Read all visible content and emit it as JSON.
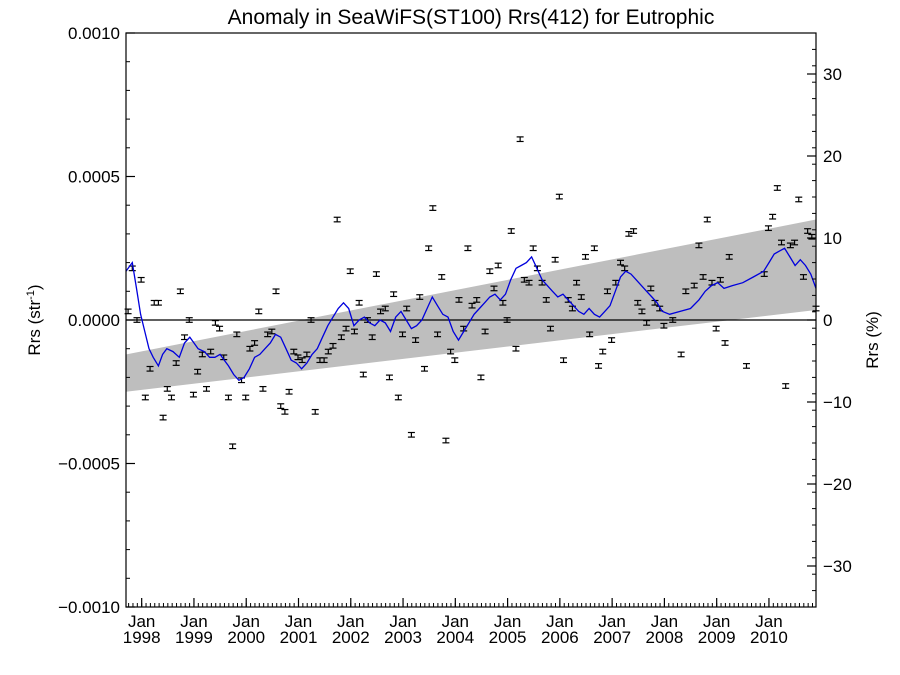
{
  "chart_data": {
    "type": "scatter",
    "title": "Anomaly in SeaWiFS(ST100) Rrs(412) for Eutrophic",
    "ylabel": "Rrs (str",
    "ylabel_sup": "-1",
    "ylabel_close": ")",
    "y2label": "Rrs (%)",
    "xlim": [
      1997.7,
      2010.9
    ],
    "ylim": [
      -0.001,
      0.001
    ],
    "y2lim": [
      -35,
      35
    ],
    "yticks": [
      -0.001,
      -0.0005,
      0.0,
      0.0005,
      0.001
    ],
    "ytick_labels": [
      "−0.0010",
      "−0.0005",
      "0.0000",
      "0.0005",
      "0.0010"
    ],
    "y2ticks": [
      -30,
      -20,
      -10,
      0,
      10,
      20,
      30
    ],
    "y2tick_labels": [
      "−30",
      "−20",
      "−10",
      "0",
      "10",
      "20",
      "30"
    ],
    "xticks": [
      {
        "x": 1998,
        "month": "Jan",
        "year": "1998"
      },
      {
        "x": 1999,
        "month": "Jan",
        "year": "1999"
      },
      {
        "x": 2000,
        "month": "Jan",
        "year": "2000"
      },
      {
        "x": 2001,
        "month": "Jan",
        "year": "2001"
      },
      {
        "x": 2002,
        "month": "Jan",
        "year": "2002"
      },
      {
        "x": 2003,
        "month": "Jan",
        "year": "2003"
      },
      {
        "x": 2004,
        "month": "Jan",
        "year": "2004"
      },
      {
        "x": 2005,
        "month": "Jan",
        "year": "2005"
      },
      {
        "x": 2006,
        "month": "Jan",
        "year": "2006"
      },
      {
        "x": 2007,
        "month": "Jan",
        "year": "2007"
      },
      {
        "x": 2008,
        "month": "Jan",
        "year": "2008"
      },
      {
        "x": 2009,
        "month": "Jan",
        "year": "2009"
      },
      {
        "x": 2010,
        "month": "Jan",
        "year": "2010"
      }
    ],
    "zero_line": 0,
    "band": {
      "x": [
        1997.7,
        2010.9
      ],
      "lower": [
        -0.00025,
        3.5e-05
      ],
      "upper": [
        -0.00012,
        0.00035
      ]
    },
    "points": [
      [
        1997.74,
        3e-05
      ],
      [
        1997.82,
        0.00018
      ],
      [
        1997.91,
        0.0
      ],
      [
        1997.99,
        0.00014
      ],
      [
        1998.07,
        -0.00027
      ],
      [
        1998.16,
        -0.00017
      ],
      [
        1998.24,
        6e-05
      ],
      [
        1998.32,
        6e-05
      ],
      [
        1998.41,
        -0.00034
      ],
      [
        1998.49,
        -0.00024
      ],
      [
        1998.57,
        -0.00027
      ],
      [
        1998.66,
        -0.00015
      ],
      [
        1998.74,
        0.0001
      ],
      [
        1998.82,
        -6e-05
      ],
      [
        1998.91,
        0.0
      ],
      [
        1998.99,
        -0.00026
      ],
      [
        1999.07,
        -0.00018
      ],
      [
        1999.16,
        -0.00012
      ],
      [
        1999.24,
        -0.00024
      ],
      [
        1999.32,
        -0.00011
      ],
      [
        1999.41,
        -1e-05
      ],
      [
        1999.49,
        -3e-05
      ],
      [
        1999.57,
        -0.00013
      ],
      [
        1999.66,
        -0.00027
      ],
      [
        1999.74,
        -0.00044
      ],
      [
        1999.82,
        -5e-05
      ],
      [
        1999.91,
        -0.00021
      ],
      [
        1999.99,
        -0.00027
      ],
      [
        2000.07,
        -0.0001
      ],
      [
        2000.16,
        -8e-05
      ],
      [
        2000.24,
        3e-05
      ],
      [
        2000.32,
        -0.00024
      ],
      [
        2000.41,
        -5e-05
      ],
      [
        2000.49,
        -4e-05
      ],
      [
        2000.57,
        0.0001
      ],
      [
        2000.66,
        -0.0003
      ],
      [
        2000.74,
        -0.00032
      ],
      [
        2000.82,
        -0.00025
      ],
      [
        2000.91,
        -0.00011
      ],
      [
        2000.99,
        -0.00013
      ],
      [
        2001.07,
        -0.00014
      ],
      [
        2001.16,
        -0.00012
      ],
      [
        2001.24,
        0.0
      ],
      [
        2001.32,
        -0.00032
      ],
      [
        2001.41,
        -0.00014
      ],
      [
        2001.49,
        -0.00014
      ],
      [
        2001.57,
        -0.00011
      ],
      [
        2001.66,
        -9e-05
      ],
      [
        2001.74,
        0.00035
      ],
      [
        2001.82,
        -6e-05
      ],
      [
        2001.91,
        -3e-05
      ],
      [
        2001.99,
        0.00017
      ],
      [
        2002.07,
        -4e-05
      ],
      [
        2002.16,
        6e-05
      ],
      [
        2002.24,
        -0.00019
      ],
      [
        2002.32,
        0.0
      ],
      [
        2002.41,
        -6e-05
      ],
      [
        2002.49,
        0.00016
      ],
      [
        2002.57,
        3e-05
      ],
      [
        2002.66,
        4e-05
      ],
      [
        2002.74,
        -0.0002
      ],
      [
        2002.82,
        9e-05
      ],
      [
        2002.91,
        -0.00027
      ],
      [
        2002.99,
        -5e-05
      ],
      [
        2003.07,
        4e-05
      ],
      [
        2003.16,
        -0.0004
      ],
      [
        2003.24,
        -7e-05
      ],
      [
        2003.32,
        8e-05
      ],
      [
        2003.41,
        -0.00017
      ],
      [
        2003.49,
        0.00025
      ],
      [
        2003.57,
        0.00039
      ],
      [
        2003.66,
        -5e-05
      ],
      [
        2003.74,
        0.00015
      ],
      [
        2003.82,
        -0.00042
      ],
      [
        2003.91,
        -0.00011
      ],
      [
        2003.99,
        -0.00014
      ],
      [
        2004.07,
        7e-05
      ],
      [
        2004.16,
        -3e-05
      ],
      [
        2004.24,
        0.00025
      ],
      [
        2004.32,
        5e-05
      ],
      [
        2004.41,
        7e-05
      ],
      [
        2004.49,
        -0.0002
      ],
      [
        2004.57,
        -4e-05
      ],
      [
        2004.66,
        0.00017
      ],
      [
        2004.74,
        0.00011
      ],
      [
        2004.82,
        0.00019
      ],
      [
        2004.91,
        6e-05
      ],
      [
        2004.99,
        0.0
      ],
      [
        2005.07,
        0.00031
      ],
      [
        2005.16,
        -0.0001
      ],
      [
        2005.24,
        0.00063
      ],
      [
        2005.32,
        0.00014
      ],
      [
        2005.41,
        0.00013
      ],
      [
        2005.49,
        0.00025
      ],
      [
        2005.57,
        0.00018
      ],
      [
        2005.66,
        0.00013
      ],
      [
        2005.74,
        7e-05
      ],
      [
        2005.82,
        -3e-05
      ],
      [
        2005.91,
        0.00021
      ],
      [
        2005.99,
        0.00043
      ],
      [
        2006.07,
        -0.00014
      ],
      [
        2006.16,
        7e-05
      ],
      [
        2006.24,
        4e-05
      ],
      [
        2006.32,
        0.00013
      ],
      [
        2006.41,
        8e-05
      ],
      [
        2006.49,
        0.00022
      ],
      [
        2006.57,
        -5e-05
      ],
      [
        2006.66,
        0.00025
      ],
      [
        2006.74,
        -0.00016
      ],
      [
        2006.82,
        -0.00011
      ],
      [
        2006.91,
        0.0001
      ],
      [
        2006.99,
        -7e-05
      ],
      [
        2007.07,
        0.00013
      ],
      [
        2007.16,
        0.0002
      ],
      [
        2007.24,
        0.00018
      ],
      [
        2007.32,
        0.0003
      ],
      [
        2007.41,
        0.00031
      ],
      [
        2007.49,
        6e-05
      ],
      [
        2007.57,
        3e-05
      ],
      [
        2007.66,
        -1e-05
      ],
      [
        2007.74,
        0.00011
      ],
      [
        2007.82,
        6e-05
      ],
      [
        2007.91,
        4e-05
      ],
      [
        2007.99,
        -2e-05
      ],
      [
        2008.16,
        0.0
      ],
      [
        2008.32,
        -0.00012
      ],
      [
        2008.41,
        0.0001
      ],
      [
        2008.57,
        0.00012
      ],
      [
        2008.66,
        0.00026
      ],
      [
        2008.74,
        0.00015
      ],
      [
        2008.82,
        0.00035
      ],
      [
        2008.91,
        0.00013
      ],
      [
        2008.99,
        -3e-05
      ],
      [
        2009.07,
        0.00014
      ],
      [
        2009.16,
        -8e-05
      ],
      [
        2009.24,
        0.00022
      ],
      [
        2009.57,
        -0.00016
      ],
      [
        2009.91,
        0.00016
      ],
      [
        2009.99,
        0.00032
      ],
      [
        2010.07,
        0.00036
      ],
      [
        2010.16,
        0.00046
      ],
      [
        2010.24,
        0.00027
      ],
      [
        2010.32,
        -0.00023
      ],
      [
        2010.41,
        0.00026
      ],
      [
        2010.49,
        0.00027
      ],
      [
        2010.57,
        0.00042
      ],
      [
        2010.66,
        0.00015
      ],
      [
        2010.74,
        0.00031
      ],
      [
        2010.82,
        0.00029
      ],
      [
        2010.9,
        4e-05
      ]
    ],
    "error_bar_halfwidth": 8e-06,
    "running_mean": {
      "color": "#0000dd",
      "x": [
        1997.7,
        1997.82,
        1997.9,
        1997.98,
        1998.06,
        1998.14,
        1998.22,
        1998.32,
        1998.4,
        1998.48,
        1998.6,
        1998.72,
        1998.82,
        1998.92,
        1999.0,
        1999.08,
        1999.2,
        1999.3,
        1999.4,
        1999.5,
        1999.58,
        1999.66,
        1999.76,
        1999.86,
        1999.96,
        2000.06,
        2000.16,
        2000.26,
        2000.36,
        2000.46,
        2000.56,
        2000.66,
        2000.76,
        2000.86,
        2000.96,
        2001.06,
        2001.16,
        2001.26,
        2001.36,
        2001.46,
        2001.56,
        2001.66,
        2001.76,
        2001.86,
        2001.96,
        2002.06,
        2002.16,
        2002.26,
        2002.36,
        2002.46,
        2002.56,
        2002.66,
        2002.76,
        2002.86,
        2002.96,
        2003.06,
        2003.16,
        2003.26,
        2003.36,
        2003.46,
        2003.56,
        2003.66,
        2003.76,
        2003.86,
        2003.96,
        2004.06,
        2004.16,
        2004.26,
        2004.36,
        2004.46,
        2004.56,
        2004.66,
        2004.76,
        2004.86,
        2004.96,
        2005.06,
        2005.16,
        2005.26,
        2005.36,
        2005.46,
        2005.56,
        2005.66,
        2005.76,
        2005.86,
        2005.96,
        2006.06,
        2006.16,
        2006.26,
        2006.36,
        2006.46,
        2006.56,
        2006.66,
        2006.76,
        2006.86,
        2006.96,
        2007.06,
        2007.16,
        2007.26,
        2007.36,
        2007.46,
        2007.56,
        2007.66,
        2007.76,
        2007.86,
        2007.96,
        2008.1,
        2008.3,
        2008.5,
        2008.66,
        2008.78,
        2008.9,
        2009.02,
        2009.14,
        2009.3,
        2009.5,
        2009.7,
        2009.9,
        2010.0,
        2010.1,
        2010.2,
        2010.3,
        2010.4,
        2010.5,
        2010.6,
        2010.7,
        2010.8,
        2010.9
      ],
      "y": [
        0.00017,
        0.0002,
        0.00011,
        2e-05,
        -4e-05,
        -0.0001,
        -0.00013,
        -0.00016,
        -0.00012,
        -0.0001,
        -0.00011,
        -0.00013,
        -8e-05,
        -6e-05,
        -8e-05,
        -0.0001,
        -0.00011,
        -0.00013,
        -0.00013,
        -0.00012,
        -0.00014,
        -0.00016,
        -0.00019,
        -0.00021,
        -0.0002,
        -0.00017,
        -0.00013,
        -0.00012,
        -0.0001,
        -8e-05,
        -5e-05,
        -6e-05,
        -0.0001,
        -0.00014,
        -0.00015,
        -0.00017,
        -0.00015,
        -0.00012,
        -0.0001,
        -6e-05,
        -2e-05,
        1e-05,
        4e-05,
        6e-05,
        4e-05,
        -2e-05,
        0.0,
        1e-05,
        -1e-05,
        -2e-05,
        0.0,
        -1e-05,
        -4e-05,
        1e-05,
        3e-05,
        0.0,
        -3e-05,
        -2e-05,
        0.0,
        4e-05,
        8e-05,
        5e-05,
        2e-05,
        1e-05,
        -4e-05,
        -7e-05,
        -4e-05,
        -1e-05,
        2e-05,
        4e-05,
        6e-05,
        8e-05,
        9e-05,
        7e-05,
        9e-05,
        0.00014,
        0.00018,
        0.00019,
        0.0002,
        0.00022,
        0.00018,
        0.00014,
        0.00012,
        0.0001,
        8e-05,
        9e-05,
        7e-05,
        5e-05,
        3e-05,
        2e-05,
        4e-05,
        2e-05,
        1e-05,
        3e-05,
        5e-05,
        0.0001,
        0.00015,
        0.00017,
        0.00016,
        0.00014,
        0.00012,
        0.0001,
        8e-05,
        6e-05,
        3e-05,
        2e-05,
        3e-05,
        4e-05,
        7e-05,
        0.0001,
        0.00012,
        0.00013,
        0.00011,
        0.00012,
        0.00013,
        0.00015,
        0.00017,
        0.0002,
        0.00023,
        0.00024,
        0.00025,
        0.00022,
        0.00019,
        0.00021,
        0.00019,
        0.00016,
        0.00011
      ]
    },
    "grid": false,
    "legend": "none"
  }
}
